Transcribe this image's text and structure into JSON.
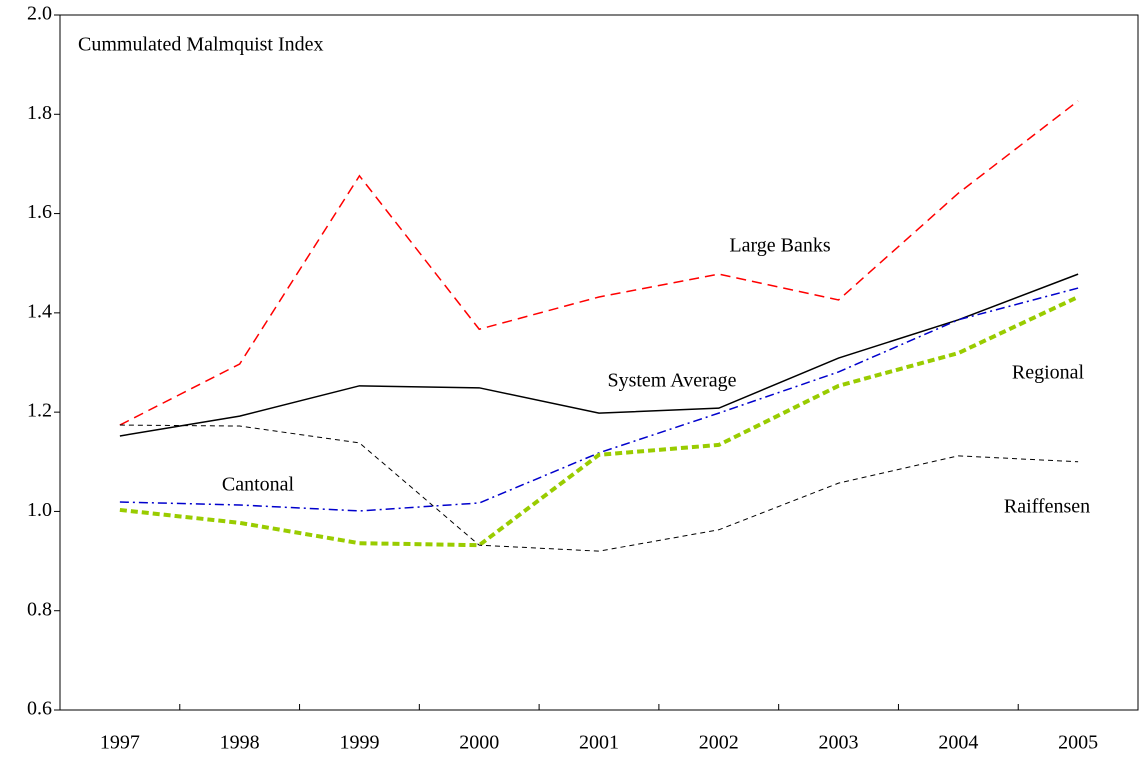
{
  "chart_data": {
    "type": "line",
    "title": "Cummulated Malmquist Index",
    "categories": [
      "1997",
      "1998",
      "1999",
      "2000",
      "2001",
      "2002",
      "2003",
      "2004",
      "2005"
    ],
    "series": [
      {
        "name": "Large Banks",
        "color": "#ff0000",
        "values": [
          1.174,
          1.297,
          1.676,
          1.367,
          1.432,
          1.478,
          1.426,
          1.641,
          1.827
        ]
      },
      {
        "name": "System Average",
        "color": "#000000",
        "values": [
          1.152,
          1.192,
          1.253,
          1.249,
          1.198,
          1.208,
          1.309,
          1.386,
          1.478
        ]
      },
      {
        "name": "Cantonal",
        "color": "#0000cc",
        "values": [
          1.019,
          1.013,
          1.001,
          1.017,
          1.118,
          1.198,
          1.281,
          1.386,
          1.45
        ]
      },
      {
        "name": "Regional",
        "color": "#99cc00",
        "values": [
          1.003,
          0.977,
          0.936,
          0.932,
          1.114,
          1.134,
          1.253,
          1.319,
          1.432
        ]
      },
      {
        "name": "Raiffensen",
        "color": "#000000",
        "values": [
          1.174,
          1.172,
          1.138,
          0.932,
          0.92,
          0.963,
          1.057,
          1.112,
          1.1
        ]
      }
    ],
    "ylim": [
      0.6,
      2.0
    ],
    "yticks": [
      0.6,
      0.8,
      {
        "value": 1,
        "label": "1.0"
      },
      1.2,
      1.4,
      1.6,
      1.8,
      {
        "value": 2,
        "label": "2.0"
      }
    ],
    "grid": false
  }
}
